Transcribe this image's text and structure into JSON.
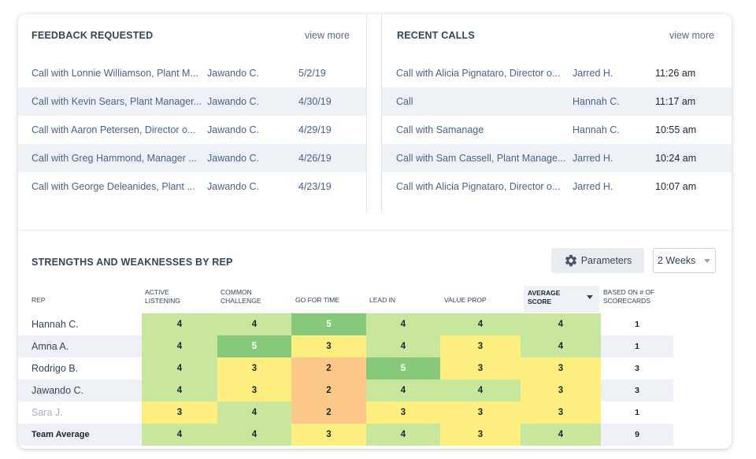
{
  "feedback": {
    "title": "FEEDBACK REQUESTED",
    "view_more": "view more",
    "rows": [
      {
        "call": "Call with Lonnie Williamson, Plant M...",
        "rep": "Jawando C.",
        "date": "5/2/19"
      },
      {
        "call": "Call with Kevin Sears, Plant Manager...",
        "rep": "Jawando C.",
        "date": "4/30/19"
      },
      {
        "call": "Call with Aaron Petersen, Director o...",
        "rep": "Jawando C.",
        "date": "4/29/19"
      },
      {
        "call": "Call with Greg Hammond, Manager ...",
        "rep": "Jawando C.",
        "date": "4/26/19"
      },
      {
        "call": "Call with George Deleanides, Plant ...",
        "rep": "Jawando C.",
        "date": "4/23/19"
      }
    ]
  },
  "recent": {
    "title": "RECENT CALLS",
    "view_more": "view more",
    "rows": [
      {
        "call": "Call with Alicia Pignataro, Director o...",
        "rep": "Jarred H.",
        "time": "11:26 am"
      },
      {
        "call": "Call",
        "rep": "Hannah C.",
        "time": "11:17 am"
      },
      {
        "call": "Call with Samanage",
        "rep": "Hannah C.",
        "time": "10:55 am"
      },
      {
        "call": "Call with Sam Cassell, Plant Manage...",
        "rep": "Jarred H.",
        "time": "10:24 am"
      },
      {
        "call": "Call with Alicia Pignataro, Director o...",
        "rep": "Jarred H.",
        "time": "10:07 am"
      }
    ]
  },
  "strengths": {
    "title": "STRENGTHS AND WEAKNESSES BY REP",
    "parameters_label": "Parameters",
    "period": "2 Weeks",
    "columns": {
      "rep": "REP",
      "active_listening": "ACTIVE LISTENING",
      "common_challenge": "COMMON CHALLENGE",
      "go_for_time": "GO FOR TIME",
      "lead_in": "LEAD IN",
      "value_prop": "VALUE PROP",
      "average_score": "AVERAGE SCORE",
      "based_on": "BASED ON # OF SCORECARDS"
    },
    "score_colors": {
      "2": "#fbc887",
      "3": "#fcef7f",
      "4": "#c8e69c",
      "5": "#86c97b"
    },
    "rows": [
      {
        "rep": "Hannah C.",
        "scores": [
          4,
          4,
          5,
          4,
          4,
          4
        ],
        "based_on": 1
      },
      {
        "rep": "Amna A.",
        "scores": [
          4,
          5,
          3,
          4,
          3,
          4
        ],
        "based_on": 1
      },
      {
        "rep": "Rodrigo B.",
        "scores": [
          4,
          3,
          2,
          5,
          3,
          3
        ],
        "based_on": 3
      },
      {
        "rep": "Jawando C.",
        "scores": [
          4,
          3,
          2,
          4,
          4,
          3
        ],
        "based_on": 3
      },
      {
        "rep": "Sara J.",
        "scores": [
          3,
          4,
          2,
          3,
          3,
          3
        ],
        "based_on": 1
      },
      {
        "rep": "Team Average",
        "scores": [
          4,
          4,
          3,
          4,
          3,
          4
        ],
        "based_on": 9
      }
    ]
  }
}
